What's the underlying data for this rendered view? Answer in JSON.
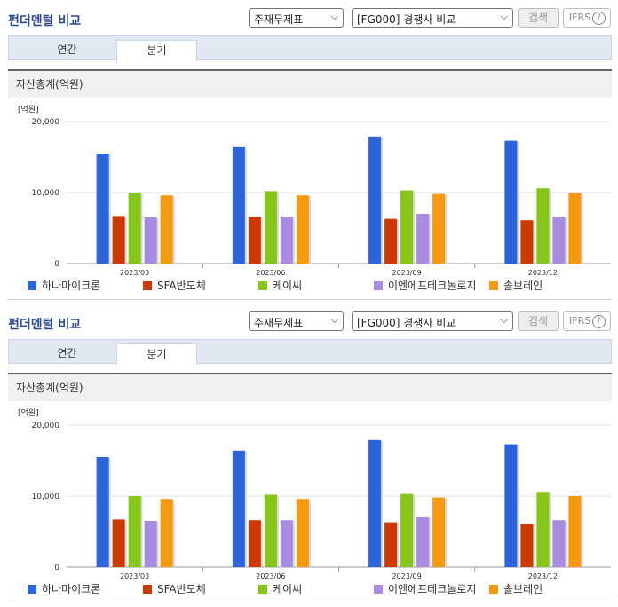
{
  "panels": [
    {
      "title": "펀더멘털 비교",
      "select_item": "주재무제표",
      "select_group": "[FG000] 경쟁사 비교",
      "search_label": "검색",
      "ifrs_label": "IFRS",
      "help_glyph": "?",
      "tabs": [
        {
          "label": "연간",
          "active": false
        },
        {
          "label": "분기",
          "active": true
        }
      ],
      "chart_header": "자산총계(억원)",
      "legend": [
        "하나마이크론",
        "SFA반도체",
        "케이씨",
        "이엔에프테크놀로지",
        "솔브레인"
      ],
      "chart_data": {
        "type": "bar",
        "unit_label": "[억원]",
        "categories": [
          "2023/03",
          "2023/06",
          "2023/09",
          "2023/12"
        ],
        "yticks": [
          "20,000",
          "10,000",
          "0"
        ],
        "ylim": [
          0,
          20000
        ],
        "series": [
          {
            "name": "하나마이크론",
            "color": "#2b65d9",
            "values": [
              15500,
              16400,
              17900,
              17300
            ]
          },
          {
            "name": "SFA반도체",
            "color": "#cc3a00",
            "values": [
              6700,
              6600,
              6300,
              6100
            ]
          },
          {
            "name": "케이씨",
            "color": "#86c51a",
            "values": [
              10000,
              10200,
              10300,
              10600
            ]
          },
          {
            "name": "이엔에프테크놀로지",
            "color": "#a98be0",
            "values": [
              6500,
              6600,
              7000,
              6600
            ]
          },
          {
            "name": "솔브레인",
            "color": "#f59a10",
            "values": [
              9600,
              9600,
              9800,
              10000
            ]
          }
        ]
      }
    },
    {
      "title": "펀더멘털 비교",
      "select_item": "주재무제표",
      "select_group": "[FG000] 경쟁사 비교",
      "search_label": "검색",
      "ifrs_label": "IFRS",
      "help_glyph": "?",
      "tabs": [
        {
          "label": "연간",
          "active": false
        },
        {
          "label": "분기",
          "active": true
        }
      ],
      "chart_header": "자산총계(억원)",
      "legend": [
        "하나마이크론",
        "SFA반도체",
        "케이씨",
        "이엔에프테크놀로지",
        "솔브레인"
      ],
      "chart_data": {
        "type": "bar",
        "unit_label": "[억원]",
        "categories": [
          "2023/03",
          "2023/06",
          "2023/09",
          "2023/12"
        ],
        "yticks": [
          "20,000",
          "10,000",
          "0"
        ],
        "ylim": [
          0,
          20000
        ],
        "series": [
          {
            "name": "하나마이크론",
            "color": "#2b65d9",
            "values": [
              15500,
              16400,
              17900,
              17300
            ]
          },
          {
            "name": "SFA반도체",
            "color": "#cc3a00",
            "values": [
              6700,
              6600,
              6300,
              6100
            ]
          },
          {
            "name": "케이씨",
            "color": "#86c51a",
            "values": [
              10000,
              10200,
              10300,
              10600
            ]
          },
          {
            "name": "이엔에프테크놀로지",
            "color": "#a98be0",
            "values": [
              6500,
              6600,
              7000,
              6600
            ]
          },
          {
            "name": "솔브레인",
            "color": "#f59a10",
            "values": [
              9600,
              9600,
              9800,
              10000
            ]
          }
        ]
      }
    }
  ]
}
